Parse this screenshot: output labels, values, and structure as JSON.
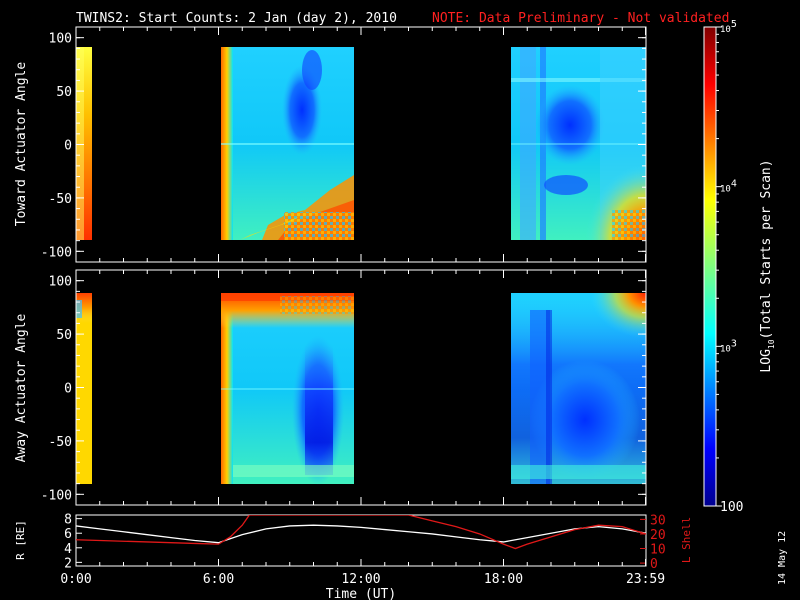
{
  "header": {
    "title": "TWINS2: Start Counts:  2 Jan (day   2), 2010",
    "note": "NOTE: Data Preliminary - Not validated"
  },
  "side_stamp": "14 May 12",
  "colors": {
    "background": "#000000",
    "frame": "#ffffff",
    "note": "#ff2020",
    "ephemeris_r": "#ffffff",
    "ephemeris_l": "#e01818"
  },
  "chart_data": [
    {
      "type": "heatmap",
      "panel": "top",
      "ylabel": "Toward Actuator Angle",
      "ylim": [
        -110,
        110
      ],
      "yticks": [
        "100",
        "50",
        "0",
        "-50",
        "-100"
      ],
      "ytick_values": [
        100,
        50,
        0,
        -50,
        -100
      ],
      "xlim_hours": [
        0,
        24
      ],
      "data_intervals_hours": [
        [
          0,
          0.6
        ],
        [
          5.9,
          11.8
        ],
        [
          18.2,
          24
        ]
      ],
      "angle_range": [
        -88,
        88
      ],
      "description": "log10 start counts vs time and actuator angle"
    },
    {
      "type": "heatmap",
      "panel": "middle",
      "ylabel": "Away Actuator Angle",
      "ylim": [
        -110,
        110
      ],
      "yticks": [
        "100",
        "50",
        "0",
        "-50",
        "-100"
      ],
      "ytick_values": [
        100,
        50,
        0,
        -50,
        -100
      ],
      "xlim_hours": [
        0,
        24
      ],
      "data_intervals_hours": [
        [
          0,
          0.6
        ],
        [
          5.9,
          11.8
        ],
        [
          18.2,
          24
        ]
      ],
      "angle_range": [
        -88,
        88
      ]
    },
    {
      "type": "line",
      "panel": "ephemeris",
      "xlabel": "Time (UT)",
      "xticks": [
        "0:00",
        "6:00",
        "12:00",
        "18:00",
        "23:59"
      ],
      "xtick_hours": [
        0,
        6,
        12,
        18,
        23.98
      ],
      "ylabel_left": "R [RE]",
      "ylabel_right": "L Shell",
      "yticks_left": [
        "8",
        "6",
        "4",
        "2"
      ],
      "ytick_left_values": [
        8,
        6,
        4,
        2
      ],
      "yticks_right": [
        "30",
        "20",
        "10",
        "0"
      ],
      "ytick_right_values": [
        30,
        20,
        10,
        0
      ],
      "ylim_left": [
        1.5,
        8.5
      ],
      "ylim_right": [
        -2,
        33
      ],
      "series": [
        {
          "name": "R [RE]",
          "x": [
            0,
            1,
            2,
            3,
            4,
            5,
            6,
            7,
            8,
            9,
            10,
            11,
            12,
            13,
            14,
            15,
            16,
            17,
            18,
            19,
            20,
            21,
            22,
            23,
            24
          ],
          "y": [
            7.0,
            6.6,
            6.2,
            5.8,
            5.4,
            5.0,
            4.7,
            5.8,
            6.6,
            7.0,
            7.1,
            7.0,
            6.8,
            6.5,
            6.2,
            5.9,
            5.5,
            5.1,
            4.8,
            5.4,
            6.0,
            6.6,
            6.9,
            6.6,
            6.0
          ]
        },
        {
          "name": "L Shell",
          "x": [
            0,
            1,
            2,
            3,
            4,
            5,
            6,
            6.5,
            7,
            7.3,
            14,
            15,
            16,
            17,
            18,
            18.5,
            19,
            20,
            21,
            22,
            23,
            24
          ],
          "y": [
            16,
            15.5,
            15,
            14.5,
            14,
            13.5,
            13,
            18,
            26,
            33,
            33,
            29,
            25,
            20,
            13,
            10,
            13,
            18,
            23,
            26,
            25,
            20
          ]
        }
      ]
    },
    {
      "type": "colorbar",
      "label": "LOG10(Total Starts per Scan)",
      "label_main": "LOG",
      "label_sub": "10",
      "label_rest": "(Total Starts per Scan)",
      "scale": "log",
      "range": [
        100,
        100000
      ],
      "ticks": [
        {
          "value": 100000,
          "base": "10",
          "exp": "5"
        },
        {
          "value": 10000,
          "base": "10",
          "exp": "4"
        },
        {
          "value": 1000,
          "base": "10",
          "exp": "3"
        },
        {
          "value": 100,
          "base": "100",
          "exp": ""
        }
      ]
    }
  ]
}
